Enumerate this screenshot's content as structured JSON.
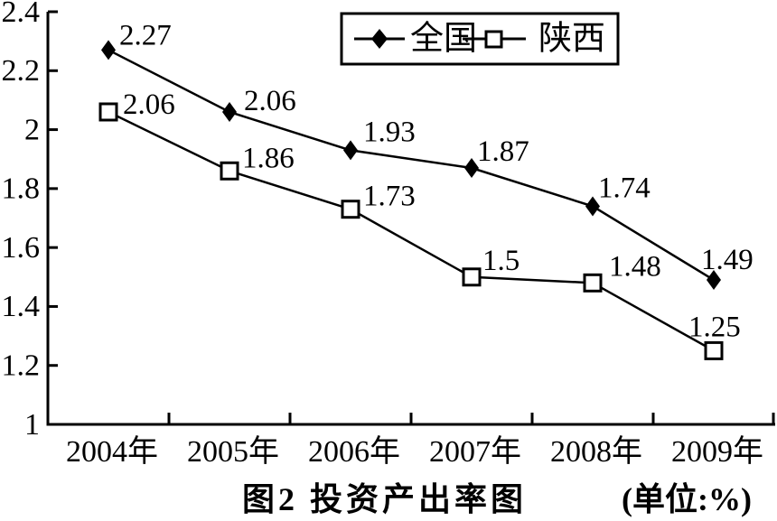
{
  "chart_data": {
    "type": "line",
    "title": "图2 投资产出率图",
    "unit_label": "(单位:%)",
    "categories": [
      "2004年",
      "2005年",
      "2006年",
      "2007年",
      "2008年",
      "2009年"
    ],
    "series": [
      {
        "name": "全国",
        "marker": "diamond",
        "marker_style": "filled-black-diamond",
        "values": [
          2.27,
          2.06,
          1.93,
          1.87,
          1.74,
          1.49
        ],
        "labels": [
          "2.27",
          "2.06",
          "1.93",
          "1.87",
          "1.74",
          "1.49"
        ]
      },
      {
        "name": "陕西",
        "marker": "square",
        "marker_style": "open-white-square",
        "values": [
          2.06,
          1.86,
          1.73,
          1.5,
          1.48,
          1.25
        ],
        "labels": [
          "2.06",
          "1.86",
          "1.73",
          "1.5",
          "1.48",
          "1.25"
        ]
      }
    ],
    "y_axis": {
      "min": 1,
      "max": 2.4,
      "tick_step": 0.2,
      "tick_labels": [
        "1",
        "1.2",
        "1.4",
        "1.6",
        "1.8",
        "2",
        "2.2",
        "2.4"
      ]
    },
    "x_axis": {
      "tick_style": "between-categories",
      "labels": [
        "2004年",
        "2005年",
        "2006年",
        "2007年",
        "2008年",
        "2009年"
      ]
    },
    "legend": {
      "position": "top-right",
      "entries": [
        {
          "label": "全国",
          "marker": "diamond"
        },
        {
          "label": "陕西",
          "marker": "square"
        }
      ]
    },
    "grid": "off",
    "colors": {
      "line": "#000000",
      "text": "#000000",
      "background": "#ffffff",
      "marker_fill_diamond": "#000000",
      "marker_fill_square": "#ffffff"
    }
  },
  "caption": {
    "figure_label": "图2 投资产出率图",
    "unit": "(单位:%)"
  }
}
